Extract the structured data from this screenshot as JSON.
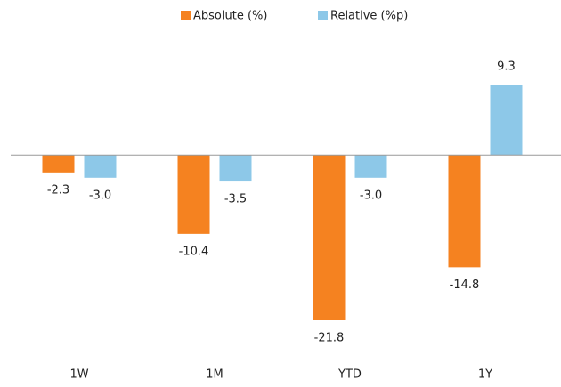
{
  "chart_data": {
    "type": "bar",
    "categories": [
      "1W",
      "1M",
      "YTD",
      "1Y"
    ],
    "series": [
      {
        "name": "Absolute (%)",
        "color": "#f58220",
        "values": [
          -2.3,
          -10.4,
          -21.8,
          -14.8
        ],
        "value_labels": [
          "-2.3",
          "-10.4",
          "-21.8",
          "-14.8"
        ]
      },
      {
        "name": "Relative (%p)",
        "color": "#8dc8e8",
        "values": [
          -3,
          -3.5,
          -3,
          9.3
        ],
        "value_labels": [
          "-3.0",
          "-3.5",
          "-3.0",
          "9.3"
        ]
      }
    ],
    "legend": "top"
  }
}
